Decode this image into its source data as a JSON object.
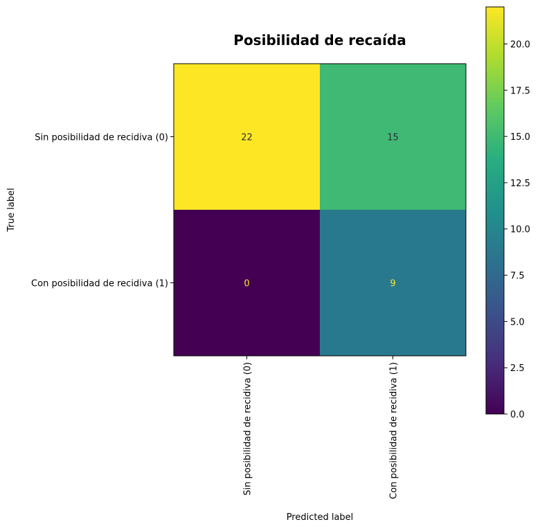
{
  "chart_data": {
    "type": "heatmap",
    "title": "Posibilidad de recaída",
    "xlabel": "Predicted label",
    "ylabel": "True label",
    "x_categories": [
      "Sin posibilidad de recidiva (0)",
      "Con posibilidad de recidiva (1)"
    ],
    "y_categories": [
      "Sin posibilidad de recidiva (0)",
      "Con posibilidad de recidiva (1)"
    ],
    "values": [
      [
        22,
        15
      ],
      [
        0,
        9
      ]
    ],
    "colorbar": {
      "range": [
        0,
        22
      ],
      "ticks": [
        "0.0",
        "2.5",
        "5.0",
        "7.5",
        "10.0",
        "12.5",
        "15.0",
        "17.5",
        "20.0"
      ],
      "colormap": "viridis"
    },
    "grid": false
  }
}
